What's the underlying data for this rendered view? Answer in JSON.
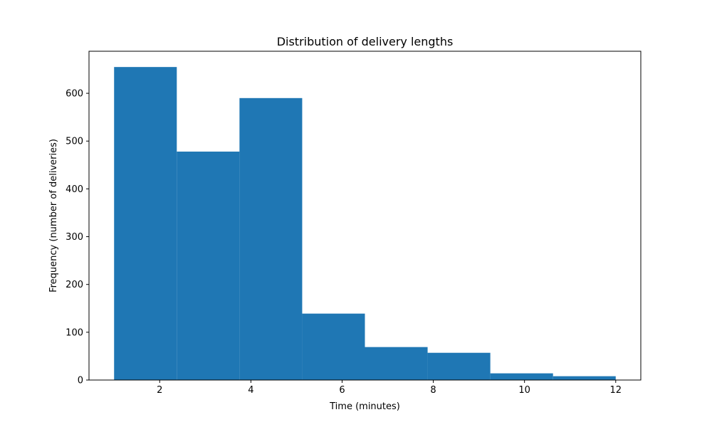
{
  "chart_data": {
    "type": "bar",
    "title": "Distribution of delivery lengths",
    "xlabel": "Time (minutes)",
    "ylabel": "Frequency (number of deliveries)",
    "bin_edges": [
      1.0,
      2.375,
      3.75,
      5.125,
      6.5,
      7.875,
      9.25,
      10.625,
      12.0
    ],
    "values": [
      655,
      478,
      590,
      139,
      69,
      57,
      14,
      8
    ],
    "xlim": [
      0.45,
      12.55
    ],
    "ylim": [
      0,
      688
    ],
    "xticks": [
      2,
      4,
      6,
      8,
      10,
      12
    ],
    "yticks": [
      0,
      100,
      200,
      300,
      400,
      500,
      600
    ],
    "grid": false,
    "bar_color": "#1f77b4"
  }
}
